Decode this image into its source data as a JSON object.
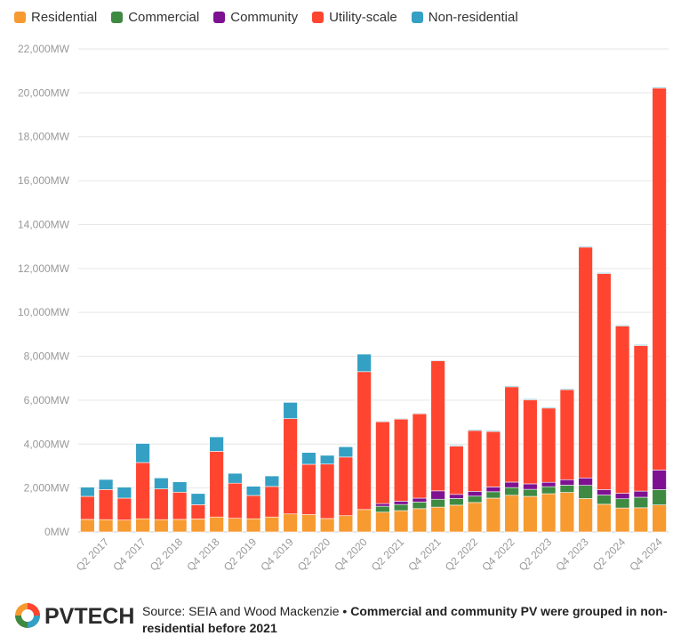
{
  "legend": [
    {
      "name": "Residential",
      "color": "#F79A30"
    },
    {
      "name": "Commercial",
      "color": "#3E8A43"
    },
    {
      "name": "Community",
      "color": "#7E1191"
    },
    {
      "name": "Utility-scale",
      "color": "#FF4530"
    },
    {
      "name": "Non-residential",
      "color": "#34A0C4"
    }
  ],
  "chart_data": {
    "type": "bar",
    "stacked": true,
    "categories": [
      "Q1 2017",
      "Q2 2017",
      "Q3 2017",
      "Q4 2017",
      "Q1 2018",
      "Q2 2018",
      "Q3 2018",
      "Q4 2018",
      "Q1 2019",
      "Q2 2019",
      "Q3 2019",
      "Q4 2019",
      "Q1 2020",
      "Q2 2020",
      "Q3 2020",
      "Q4 2020",
      "Q1 2021",
      "Q2 2021",
      "Q3 2021",
      "Q4 2021",
      "Q1 2022",
      "Q2 2022",
      "Q3 2022",
      "Q4 2022",
      "Q1 2023",
      "Q2 2023",
      "Q3 2023",
      "Q4 2023",
      "Q1 2024",
      "Q2 2024",
      "Q3 2024",
      "Q4 2024"
    ],
    "tick_labels": [
      "Q2 2017",
      "Q4 2017",
      "Q2 2018",
      "Q4 2018",
      "Q2 2019",
      "Q4 2019",
      "Q2 2020",
      "Q4 2020",
      "Q2 2021",
      "Q4 2021",
      "Q2 2022",
      "Q4 2022",
      "Q2 2023",
      "Q4 2023",
      "Q2 2024",
      "Q4 2024"
    ],
    "series": [
      {
        "name": "Residential",
        "color": "#F79A30",
        "values": [
          570,
          560,
          540,
          600,
          560,
          570,
          590,
          680,
          620,
          600,
          680,
          820,
          790,
          610,
          740,
          1020,
          900,
          970,
          1060,
          1130,
          1220,
          1340,
          1540,
          1670,
          1620,
          1740,
          1800,
          1520,
          1260,
          1090,
          1100,
          1230
        ]
      },
      {
        "name": "Commercial",
        "color": "#3E8A43",
        "values": [
          0,
          0,
          0,
          0,
          0,
          0,
          0,
          0,
          0,
          0,
          0,
          0,
          0,
          0,
          0,
          0,
          270,
          280,
          300,
          360,
          300,
          290,
          290,
          350,
          320,
          320,
          330,
          600,
          420,
          420,
          480,
          700
        ]
      },
      {
        "name": "Community",
        "color": "#7E1191",
        "values": [
          0,
          0,
          0,
          0,
          0,
          0,
          0,
          0,
          0,
          0,
          0,
          0,
          0,
          0,
          0,
          0,
          120,
          150,
          180,
          380,
          190,
          220,
          220,
          250,
          250,
          200,
          250,
          340,
          250,
          250,
          280,
          890
        ]
      },
      {
        "name": "Utility-scale",
        "color": "#FF4530",
        "values": [
          1050,
          1370,
          1000,
          2560,
          1400,
          1240,
          650,
          2990,
          1600,
          1060,
          1390,
          4340,
          2290,
          2480,
          2670,
          6280,
          3730,
          3740,
          3840,
          5930,
          2200,
          2770,
          2520,
          4340,
          3830,
          3380,
          4100,
          10510,
          9840,
          7620,
          6630,
          17400
        ]
      },
      {
        "name": "Non-residential",
        "color": "#34A0C4",
        "values": [
          420,
          460,
          500,
          870,
          500,
          470,
          510,
          660,
          450,
          420,
          480,
          740,
          540,
          400,
          470,
          800,
          30,
          30,
          30,
          30,
          40,
          40,
          40,
          40,
          40,
          40,
          40,
          40,
          40,
          40,
          40,
          40
        ]
      }
    ],
    "ylim": [
      0,
      22000
    ],
    "yticks": [
      "0MW",
      "2,000MW",
      "4,000MW",
      "6,000MW",
      "8,000MW",
      "10,000MW",
      "12,000MW",
      "14,000MW",
      "16,000MW",
      "18,000MW",
      "20,000MW",
      "22,000MW"
    ],
    "grid": true,
    "legend_position": "top-left"
  },
  "footer": {
    "logo_text": "PVTECH",
    "source": "Source: SEIA and Wood Mackenzie",
    "separator": " • ",
    "note": "Commercial and community PV were grouped in non-residential before 2021"
  }
}
